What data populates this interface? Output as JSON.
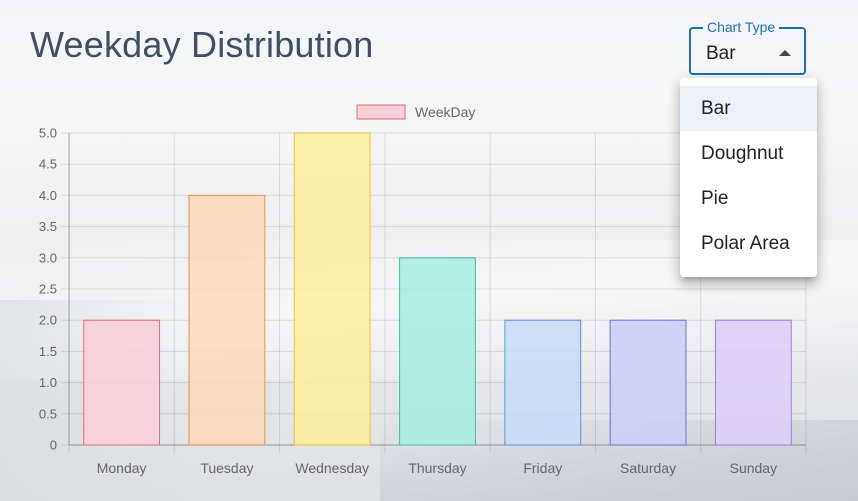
{
  "header": {
    "title": "Weekday Distribution"
  },
  "chart_type_select": {
    "label": "Chart Type",
    "value": "Bar",
    "accent_color": "#1f6fb8",
    "options": [
      {
        "label": "Bar",
        "selected": true
      },
      {
        "label": "Doughnut",
        "selected": false
      },
      {
        "label": "Pie",
        "selected": false
      },
      {
        "label": "Polar Area",
        "selected": false
      }
    ]
  },
  "chart_data": {
    "type": "bar",
    "categories": [
      "Monday",
      "Tuesday",
      "Wednesday",
      "Thursday",
      "Friday",
      "Saturday",
      "Sunday"
    ],
    "series": [
      {
        "name": "WeekDay",
        "values": [
          2,
          4,
          5,
          3,
          2,
          2,
          2
        ]
      }
    ],
    "ylim": [
      0,
      5
    ],
    "yticks": [
      "0",
      "0.5",
      "1.0",
      "1.5",
      "2.0",
      "2.5",
      "3.0",
      "3.5",
      "4.0",
      "4.5",
      "5.0"
    ],
    "legend": {
      "position": "top",
      "label": "WeekDay"
    },
    "grid": true,
    "colors": {
      "fill": [
        "#f9d0d8",
        "#fbd9b8",
        "#fbee9c",
        "#a7ece0",
        "#c7dcf6",
        "#c8cef7",
        "#dccff8"
      ],
      "stroke": [
        "#e06b80",
        "#e4914f",
        "#e7c53b",
        "#3fbfa3",
        "#5b8fe0",
        "#6c73e0",
        "#9a7ae6"
      ]
    }
  }
}
